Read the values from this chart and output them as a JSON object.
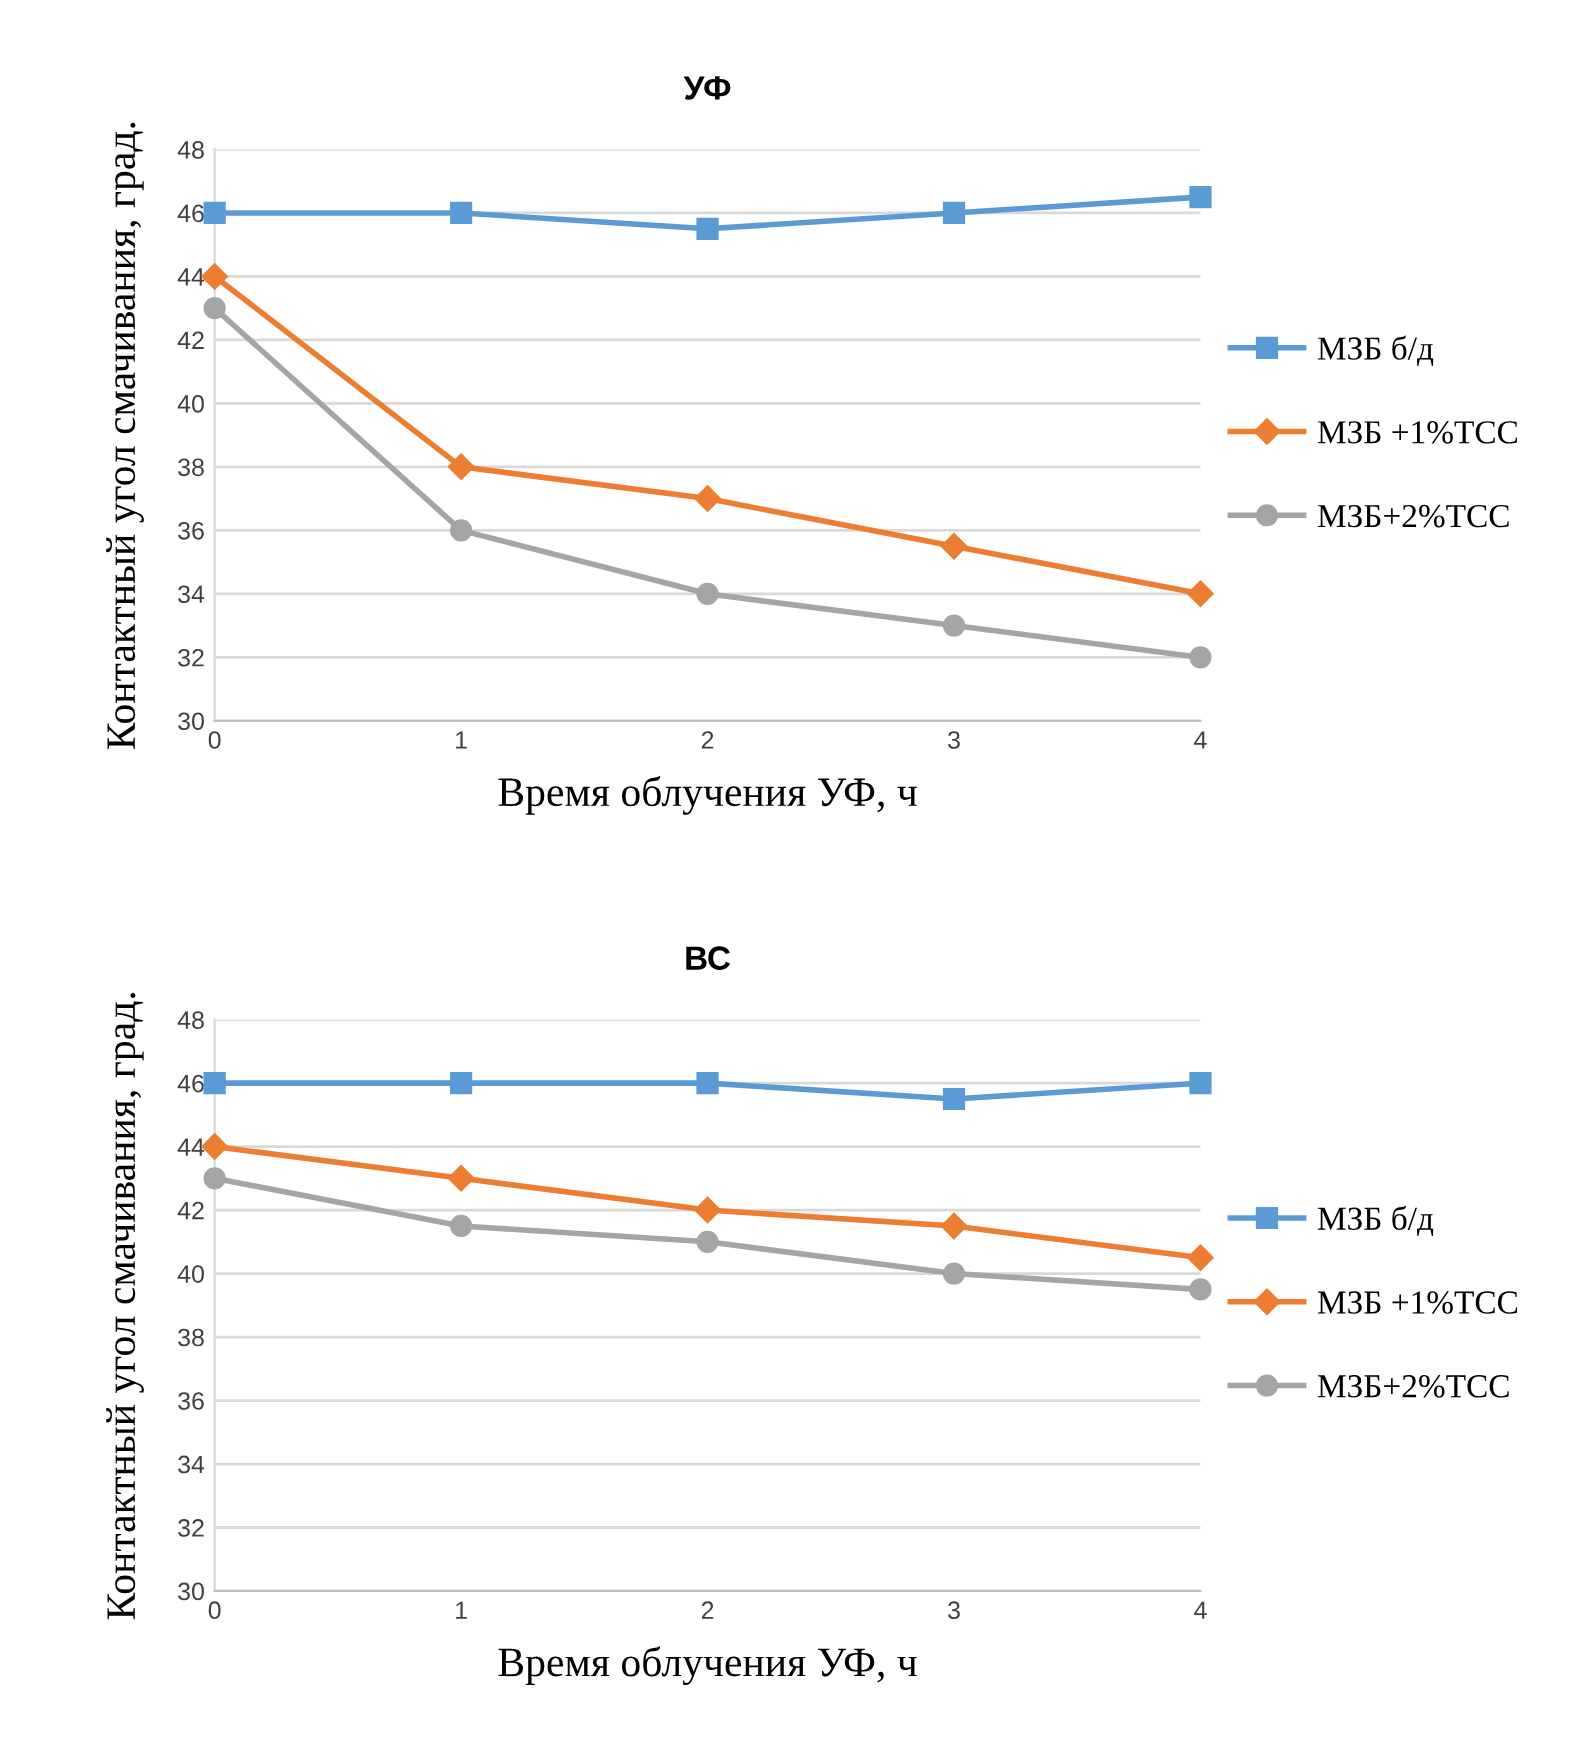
{
  "chart_data": [
    {
      "type": "line",
      "title": "УФ",
      "xlabel": "Время облучения УФ, ч",
      "ylabel": "Контактный угол смачивания, град.",
      "x": [
        0,
        1,
        2,
        3,
        4
      ],
      "xlim": [
        0,
        4
      ],
      "xticks": [
        0,
        1,
        2,
        3,
        4
      ],
      "ylim": [
        30,
        48
      ],
      "yticks": [
        30,
        32,
        34,
        36,
        38,
        40,
        42,
        44,
        46,
        48
      ],
      "grid": "y",
      "legend": "right",
      "line_style": "solid",
      "series": [
        {
          "name": "МЗБ б/д",
          "color": "#5b9bd5",
          "marker": "square",
          "values": [
            46,
            46,
            45.5,
            46,
            46.5
          ]
        },
        {
          "name": "МЗБ +1%ТСС",
          "color": "#ed7d31",
          "marker": "diamond",
          "values": [
            44,
            38,
            37,
            35.5,
            34
          ]
        },
        {
          "name": "МЗБ+2%ТСС",
          "color": "#a5a5a5",
          "marker": "circle",
          "values": [
            43,
            36,
            34,
            33,
            32
          ]
        }
      ]
    },
    {
      "type": "line",
      "title": "ВС",
      "xlabel": "Время облучения УФ, ч",
      "ylabel": "Контактный угол смачивания, град.",
      "x": [
        0,
        1,
        2,
        3,
        4
      ],
      "xlim": [
        0,
        4
      ],
      "xticks": [
        0,
        1,
        2,
        3,
        4
      ],
      "ylim": [
        30,
        48
      ],
      "yticks": [
        30,
        32,
        34,
        36,
        38,
        40,
        42,
        44,
        46,
        48
      ],
      "grid": "y",
      "legend": "right",
      "line_style": "solid",
      "series": [
        {
          "name": "МЗБ б/д",
          "color": "#5b9bd5",
          "marker": "square",
          "values": [
            46,
            46,
            46,
            45.5,
            46
          ]
        },
        {
          "name": "МЗБ +1%ТСС",
          "color": "#ed7d31",
          "marker": "diamond",
          "values": [
            44,
            43,
            42,
            41.5,
            40.5
          ]
        },
        {
          "name": "МЗБ+2%ТСС",
          "color": "#a5a5a5",
          "marker": "circle",
          "values": [
            43,
            41.5,
            41,
            40,
            39.5
          ]
        }
      ]
    }
  ]
}
